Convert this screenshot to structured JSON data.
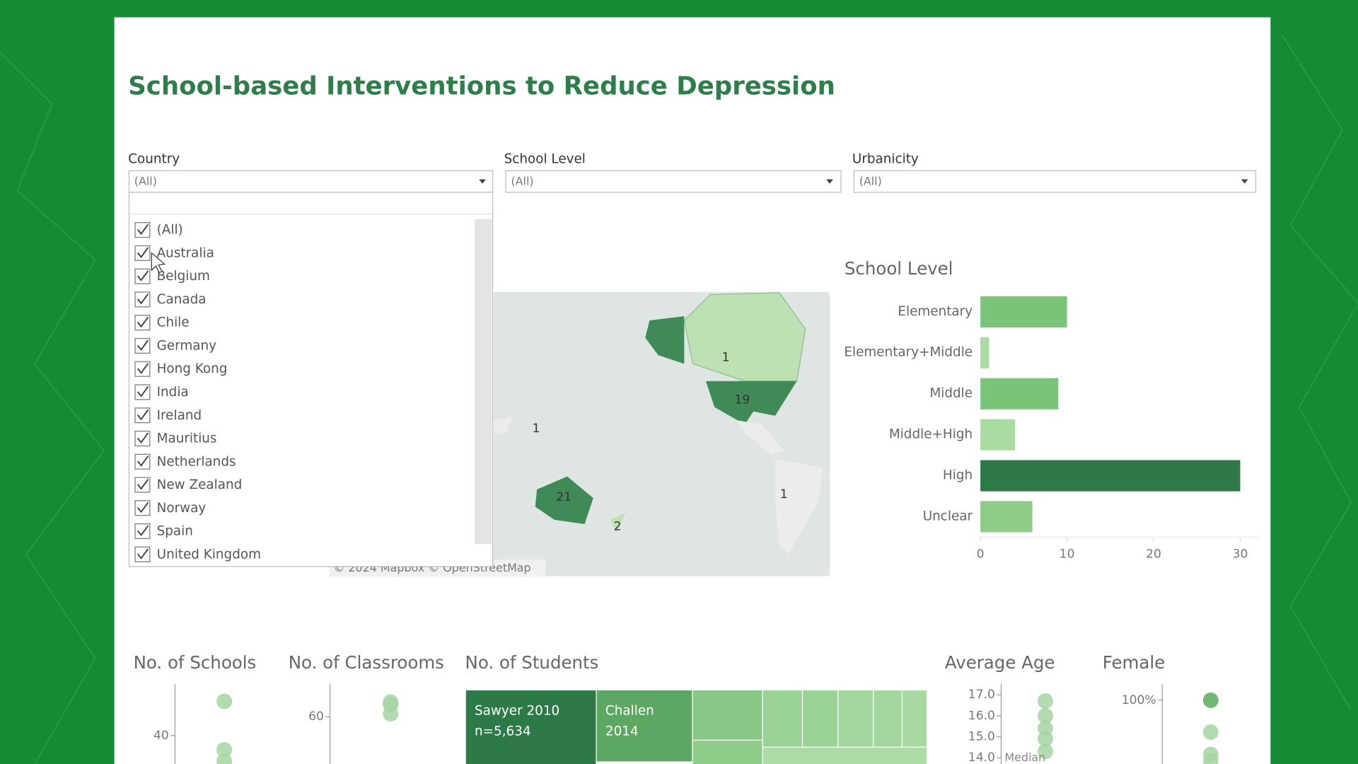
{
  "title": "School-based Interventions to Reduce Depression",
  "filters": {
    "country": {
      "label": "Country",
      "value": "(All)",
      "options": [
        "(All)",
        "Australia",
        "Belgium",
        "Canada",
        "Chile",
        "Germany",
        "Hong Kong",
        "India",
        "Ireland",
        "Mauritius",
        "Netherlands",
        "New Zealand",
        "Norway",
        "Spain",
        "United Kingdom"
      ]
    },
    "school_level": {
      "label": "School Level",
      "value": "(All)"
    },
    "urbanicity": {
      "label": "Urbanicity",
      "value": "(All)"
    }
  },
  "map": {
    "labels": [
      1,
      19,
      1,
      21,
      2,
      1
    ],
    "attribution": "© 2024 Mapbox  © OpenStreetMap"
  },
  "treemap": {
    "title": "No. of Students",
    "cells": [
      {
        "name": "Sawyer 2010",
        "detail": "n=5,634"
      },
      {
        "name": "Challen",
        "detail": "2014"
      }
    ]
  },
  "chart_data": [
    {
      "type": "bar",
      "title": "School Level",
      "categories": [
        "Elementary",
        "Elementary+Middle",
        "Middle",
        "Middle+High",
        "High",
        "Unclear"
      ],
      "values": [
        10,
        1,
        9,
        4,
        30,
        6
      ],
      "colors": [
        "#7cc37a",
        "#a9dba3",
        "#7cc37a",
        "#a9dba3",
        "#2d7a48",
        "#8fcc8a"
      ],
      "xlim": [
        0,
        32
      ],
      "xticks": [
        0,
        10,
        20,
        30
      ]
    },
    {
      "type": "strip",
      "title": "No. of Schools",
      "values": [
        52,
        35,
        31
      ],
      "color": "#a7d3a5",
      "ylim": [
        30,
        58
      ],
      "yticks": [
        40
      ]
    },
    {
      "type": "strip",
      "title": "No. of Classrooms",
      "values": [
        65,
        64,
        61
      ],
      "color": "#a7d3a5",
      "ylim": [
        44,
        71
      ],
      "yticks": [
        60
      ]
    },
    {
      "type": "strip",
      "title": "Average Age",
      "values": [
        16.7,
        16.0,
        15.4,
        14.9,
        14.3
      ],
      "color": "#a7d3a5",
      "ylim": [
        13.7,
        17.5
      ],
      "yticks": [
        {
          "value": 17,
          "label": "17.0"
        },
        {
          "value": 16,
          "label": "16.0"
        },
        {
          "value": 15,
          "label": "15.0"
        },
        {
          "value": 14,
          "label": "14.0"
        }
      ],
      "annotation": "Median"
    },
    {
      "type": "strip",
      "title": "Female",
      "values": [
        100,
        90,
        83,
        81
      ],
      "color": "#a7d3a5",
      "ylim": [
        80,
        105
      ],
      "yticks": [
        {
          "value": 100,
          "label": "100%"
        }
      ]
    }
  ]
}
